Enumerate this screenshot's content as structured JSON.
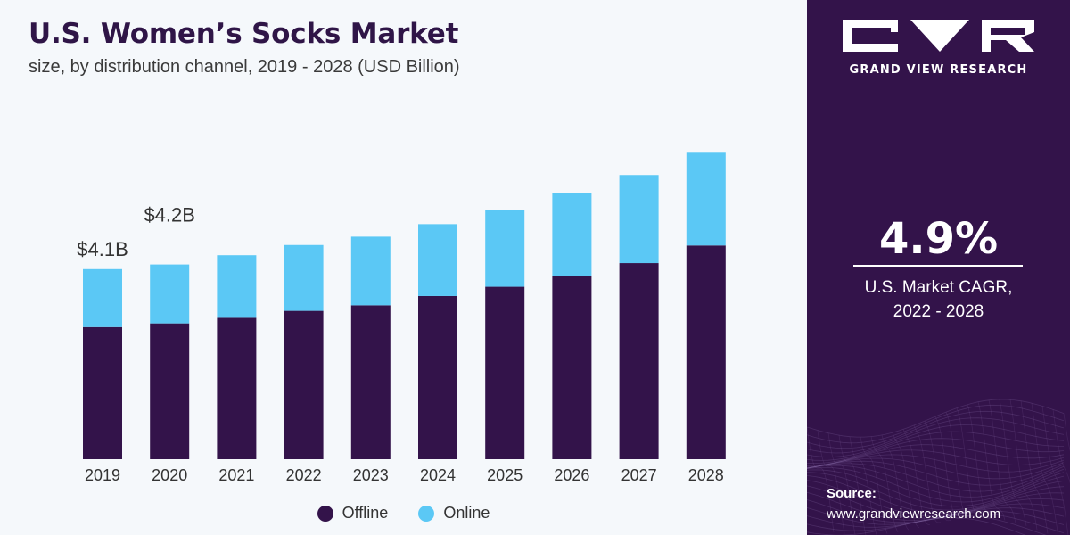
{
  "header": {
    "title": "U.S. Women’s Socks Market",
    "subtitle": "size, by distribution channel, 2019 - 2028 (USD Billion)"
  },
  "chart_data": {
    "type": "bar",
    "stacked": true,
    "categories": [
      "2019",
      "2020",
      "2021",
      "2022",
      "2023",
      "2024",
      "2025",
      "2026",
      "2027",
      "2028"
    ],
    "series": [
      {
        "name": "Offline",
        "color": "#33134a",
        "values": [
          2.85,
          2.93,
          3.05,
          3.2,
          3.32,
          3.52,
          3.72,
          3.96,
          4.23,
          4.61
        ]
      },
      {
        "name": "Online",
        "color": "#5bc8f5",
        "values": [
          1.25,
          1.27,
          1.35,
          1.42,
          1.48,
          1.55,
          1.66,
          1.78,
          1.9,
          2.0
        ]
      }
    ],
    "data_labels": [
      {
        "category": "2019",
        "text": "$4.1B"
      },
      {
        "category": "2020",
        "text": "$4.2B"
      }
    ],
    "ylim": [
      0,
      7.5
    ],
    "xlabel": "",
    "ylabel": "",
    "grid": false,
    "legend_position": "bottom-center"
  },
  "legend": {
    "items": [
      {
        "label": "Offline",
        "color": "#33134a"
      },
      {
        "label": "Online",
        "color": "#5bc8f5"
      }
    ]
  },
  "panel": {
    "brand": "GRAND VIEW RESEARCH",
    "cagr_value": "4.9%",
    "cagr_line1": "U.S. Market CAGR,",
    "cagr_line2": "2022 - 2028",
    "source_label": "Source:",
    "source_url": "www.grandviewresearch.com"
  }
}
